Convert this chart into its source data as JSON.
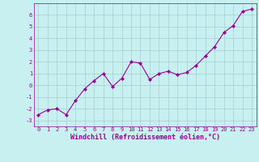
{
  "x": [
    0,
    1,
    2,
    3,
    4,
    5,
    6,
    7,
    8,
    9,
    10,
    11,
    12,
    13,
    14,
    15,
    16,
    17,
    18,
    19,
    20,
    21,
    22,
    23
  ],
  "y": [
    -2.5,
    -2.1,
    -2.0,
    -2.5,
    -1.3,
    -0.3,
    0.4,
    1.0,
    -0.1,
    0.6,
    2.0,
    1.9,
    0.5,
    1.0,
    1.2,
    0.9,
    1.1,
    1.7,
    2.5,
    3.3,
    4.5,
    5.1,
    6.3,
    6.5
  ],
  "line_color": "#990099",
  "marker": "D",
  "marker_size": 2.2,
  "bg_color": "#c8f0f0",
  "grid_color": "#a0d0d0",
  "xlabel": "Windchill (Refroidissement éolien,°C)",
  "xlim": [
    -0.5,
    23.5
  ],
  "ylim": [
    -3.5,
    7.0
  ],
  "yticks": [
    -3,
    -2,
    -1,
    0,
    1,
    2,
    3,
    4,
    5,
    6
  ],
  "xticks": [
    0,
    1,
    2,
    3,
    4,
    5,
    6,
    7,
    8,
    9,
    10,
    11,
    12,
    13,
    14,
    15,
    16,
    17,
    18,
    19,
    20,
    21,
    22,
    23
  ],
  "tick_color": "#990099",
  "tick_fontsize": 5.0,
  "xlabel_fontsize": 6.0,
  "line_width": 0.8
}
